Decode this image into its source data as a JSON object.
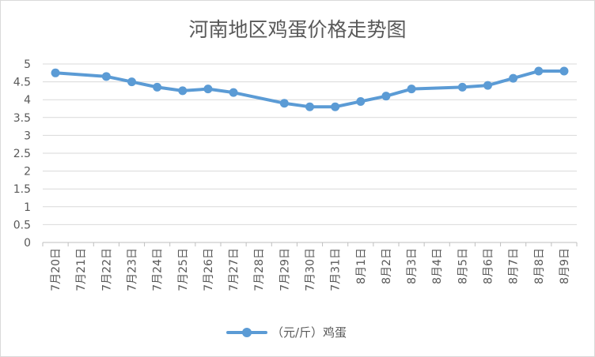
{
  "chart_data": {
    "type": "line",
    "title": "河南地区鸡蛋价格走势图",
    "xlabel": "",
    "ylabel": "",
    "ylim": [
      0,
      5
    ],
    "yticks": [
      "0",
      "0.5",
      "1",
      "1.5",
      "2",
      "2.5",
      "3",
      "3.5",
      "4",
      "4.5",
      "5"
    ],
    "grid": true,
    "legend_position": "bottom",
    "categories": [
      "7月20日",
      "7月21日",
      "7月22日",
      "7月23日",
      "7月24日",
      "7月25日",
      "7月26日",
      "7月27日",
      "7月28日",
      "7月29日",
      "7月30日",
      "7月31日",
      "8月1日",
      "8月2日",
      "8月3日",
      "8月4日",
      "8月5日",
      "8月6日",
      "8月7日",
      "8月8日",
      "8月9日"
    ],
    "series": [
      {
        "name": "（元/斤）鸡蛋",
        "color": "#5b9bd5",
        "values": [
          4.75,
          null,
          4.65,
          4.5,
          4.35,
          4.25,
          4.3,
          4.2,
          null,
          3.9,
          3.8,
          3.8,
          3.95,
          4.1,
          4.3,
          null,
          4.35,
          4.4,
          4.6,
          4.8,
          4.8
        ]
      }
    ]
  }
}
